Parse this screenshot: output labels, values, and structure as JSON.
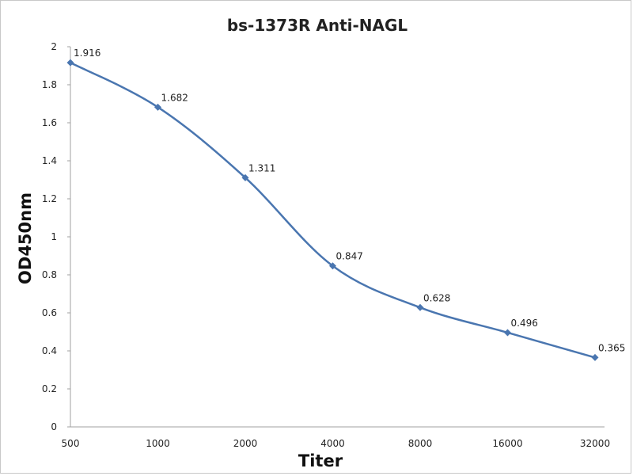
{
  "chart_data": {
    "type": "line",
    "title": "bs-1373R Anti-NAGL",
    "xlabel": "Titer",
    "ylabel": "OD450nm",
    "categories": [
      "500",
      "1000",
      "2000",
      "4000",
      "8000",
      "16000",
      "32000"
    ],
    "series": [
      {
        "values": [
          1.916,
          1.682,
          1.311,
          0.847,
          0.628,
          0.496,
          0.365
        ],
        "labels": [
          "1.916",
          "1.682",
          "1.311",
          "0.847",
          "0.628",
          "0.496",
          "0.365"
        ],
        "color": "#4a76b0"
      }
    ],
    "yticks": [
      "0",
      "0.2",
      "0.4",
      "0.6",
      "0.8",
      "1",
      "1.2",
      "1.4",
      "1.6",
      "1.8",
      "2"
    ],
    "ylim": [
      0,
      2
    ],
    "grid": false,
    "legend": "none"
  }
}
